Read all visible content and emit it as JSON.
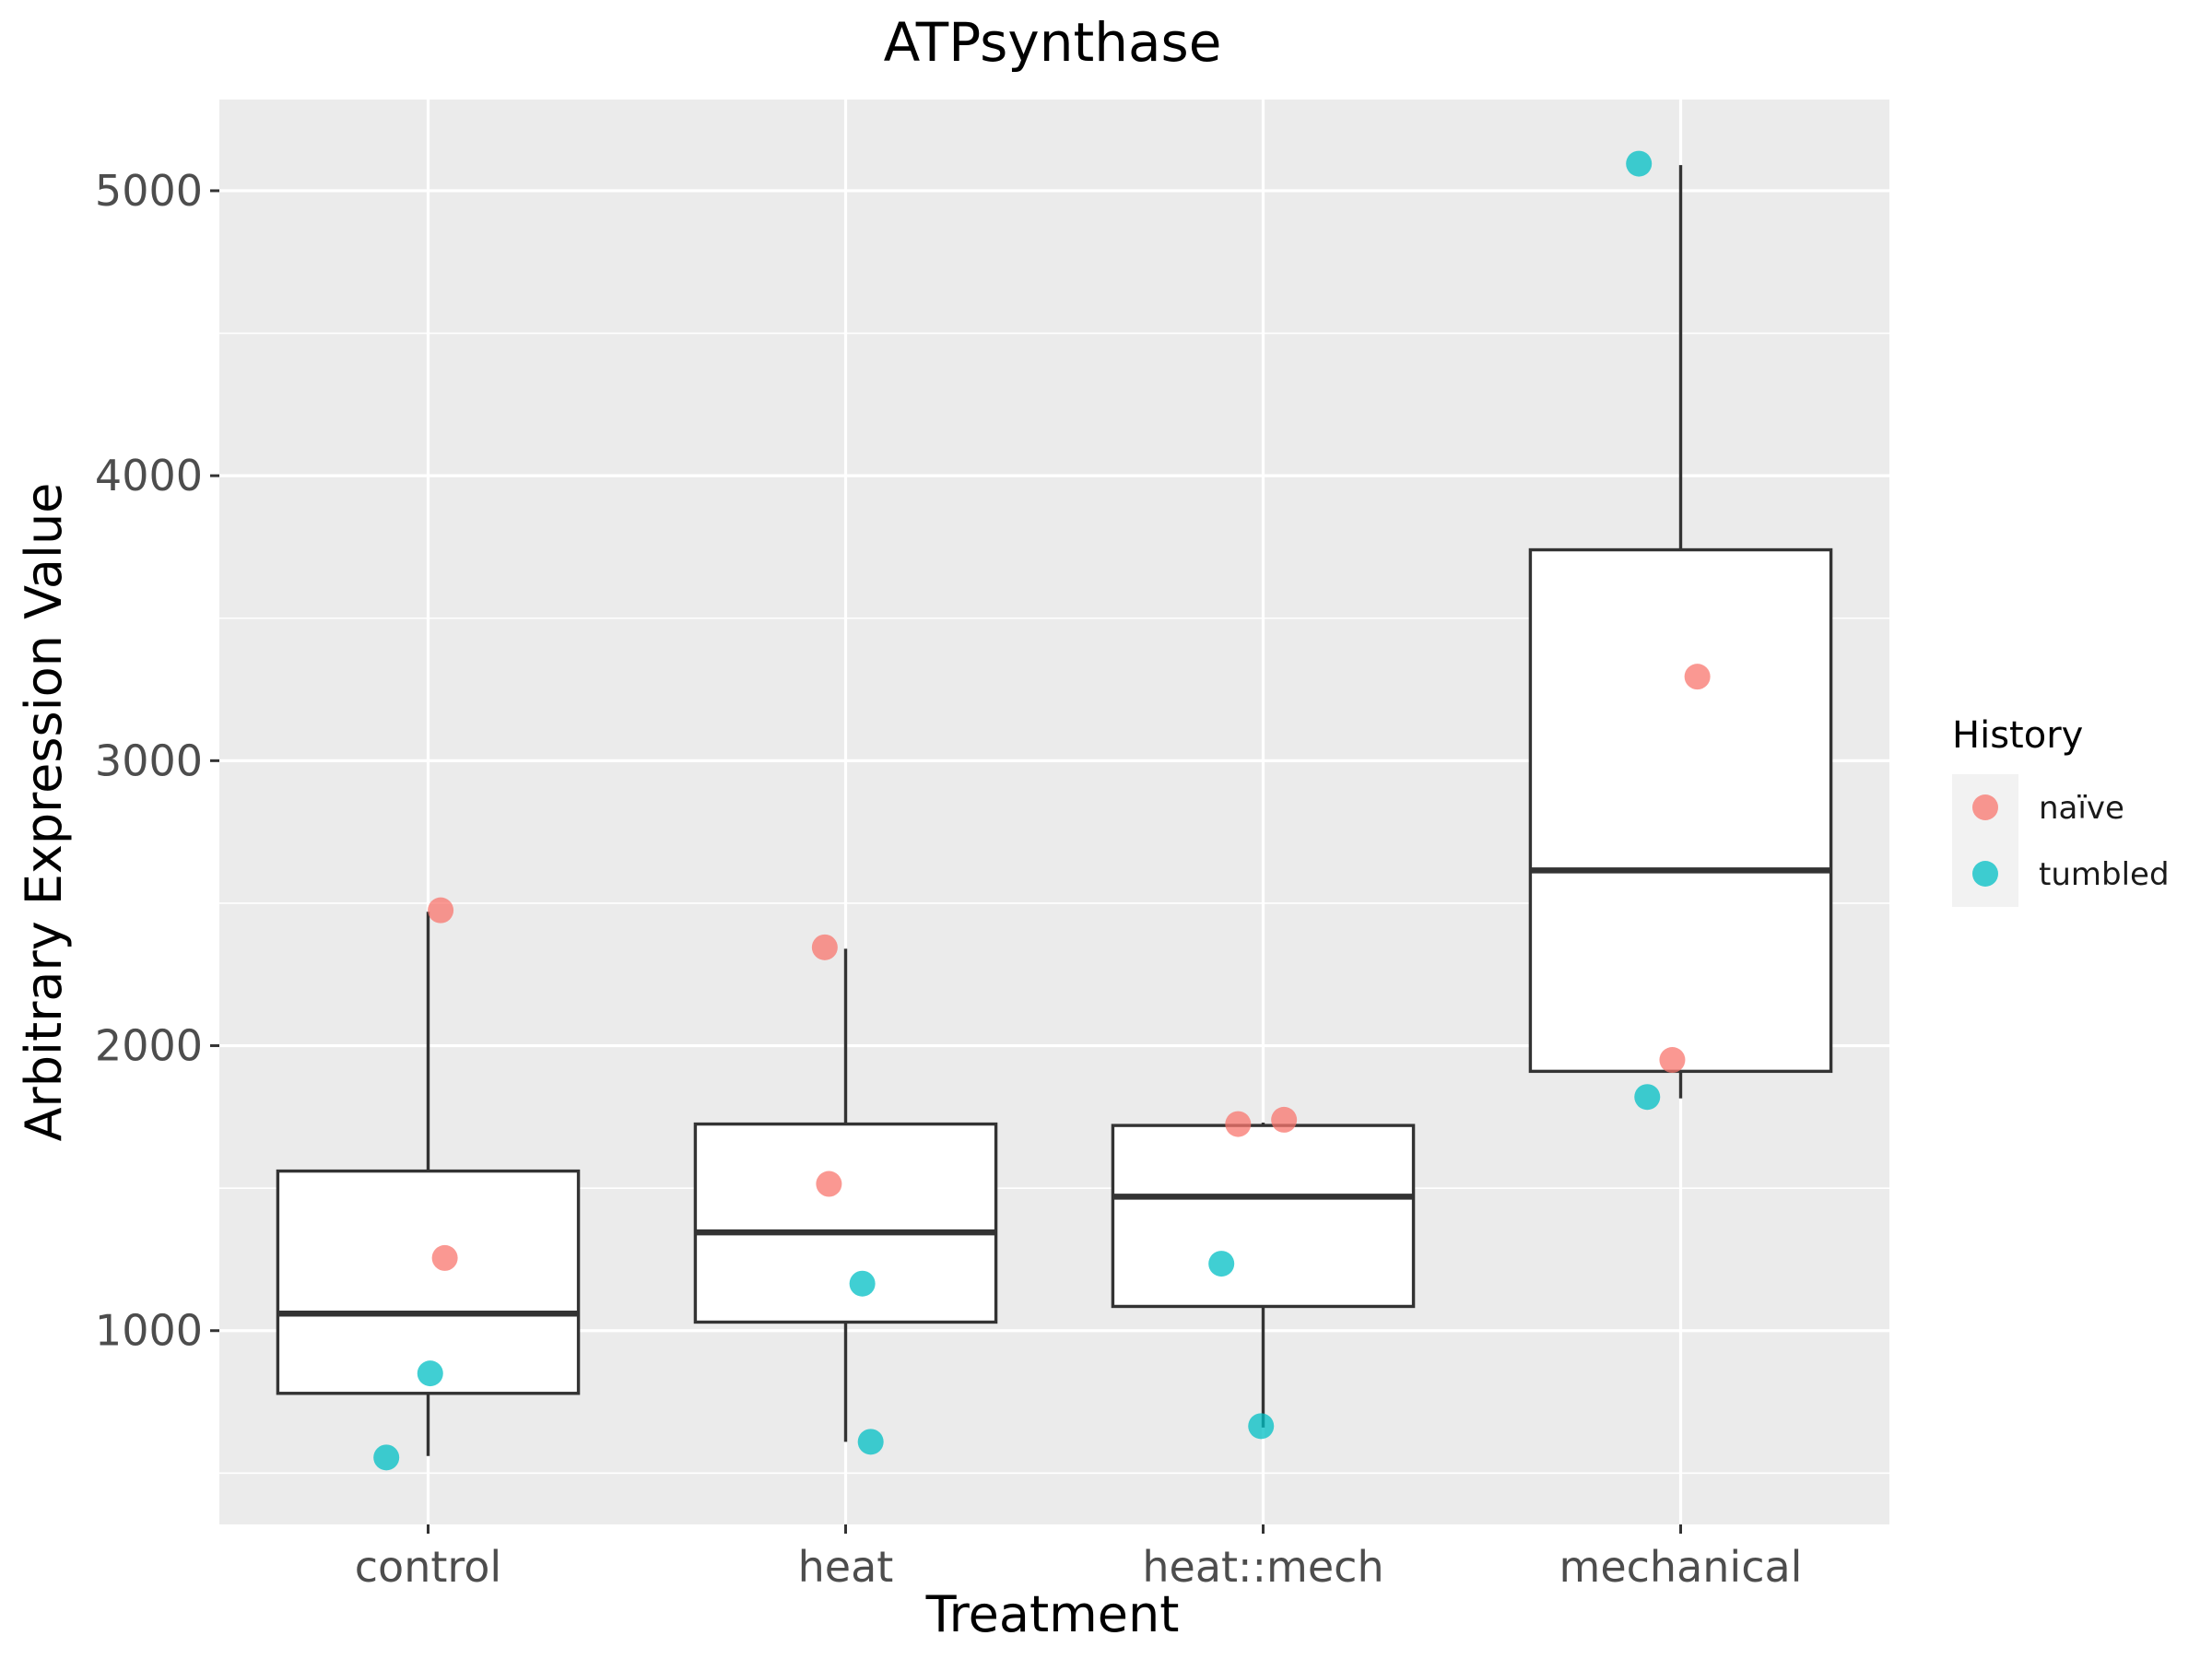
{
  "chart_data": {
    "type": "box",
    "title": "ATPsynthase",
    "xlabel": "Treatment",
    "ylabel": "Arbitrary Expression Value",
    "categories": [
      "control",
      "heat",
      "heat::mech",
      "mechanical"
    ],
    "ylim": [
      320,
      5320
    ],
    "yticks": [
      1000,
      2000,
      3000,
      4000,
      5000
    ],
    "ytick_labels": [
      "1000",
      "2000",
      "3000",
      "4000",
      "5000"
    ],
    "grid": true,
    "legend": {
      "title": "History",
      "position": "right",
      "entries": [
        {
          "label": "naïve",
          "color": "#F8766D"
        },
        {
          "label": "tumbled",
          "color": "#00BFC4"
        }
      ]
    },
    "boxes": [
      {
        "category": "control",
        "whisker_low": 560,
        "q1": 780,
        "median": 1060,
        "q3": 1560,
        "whisker_high": 2470
      },
      {
        "category": "heat",
        "whisker_low": 610,
        "q1": 1030,
        "median": 1345,
        "q3": 1725,
        "whisker_high": 2340
      },
      {
        "category": "heat::mech",
        "whisker_low": 660,
        "q1": 1085,
        "median": 1470,
        "q3": 1720,
        "whisker_high": 1730
      },
      {
        "category": "mechanical",
        "whisker_low": 1815,
        "q1": 1910,
        "median": 2615,
        "q3": 3740,
        "whisker_high": 5090
      }
    ],
    "points": [
      {
        "category": "control",
        "history": "naïve",
        "value": 2475
      },
      {
        "category": "control",
        "history": "naïve",
        "value": 1255
      },
      {
        "category": "control",
        "history": "tumbled",
        "value": 850
      },
      {
        "category": "control",
        "history": "tumbled",
        "value": 555
      },
      {
        "category": "heat",
        "history": "naïve",
        "value": 2345
      },
      {
        "category": "heat",
        "history": "naïve",
        "value": 1515
      },
      {
        "category": "heat",
        "history": "tumbled",
        "value": 1165
      },
      {
        "category": "heat",
        "history": "tumbled",
        "value": 610
      },
      {
        "category": "heat::mech",
        "history": "naïve",
        "value": 1725
      },
      {
        "category": "heat::mech",
        "history": "naïve",
        "value": 1740
      },
      {
        "category": "heat::mech",
        "history": "tumbled",
        "value": 1235
      },
      {
        "category": "heat::mech",
        "history": "tumbled",
        "value": 665
      },
      {
        "category": "mechanical",
        "history": "tumbled",
        "value": 5095
      },
      {
        "category": "mechanical",
        "history": "naïve",
        "value": 3295
      },
      {
        "category": "mechanical",
        "history": "naïve",
        "value": 1950
      },
      {
        "category": "mechanical",
        "history": "tumbled",
        "value": 1820
      }
    ],
    "colors": {
      "panel_background": "#EBEBEB",
      "grid": "#FFFFFF",
      "box_fill": "#FFFFFF",
      "box_stroke": "#333333"
    }
  }
}
